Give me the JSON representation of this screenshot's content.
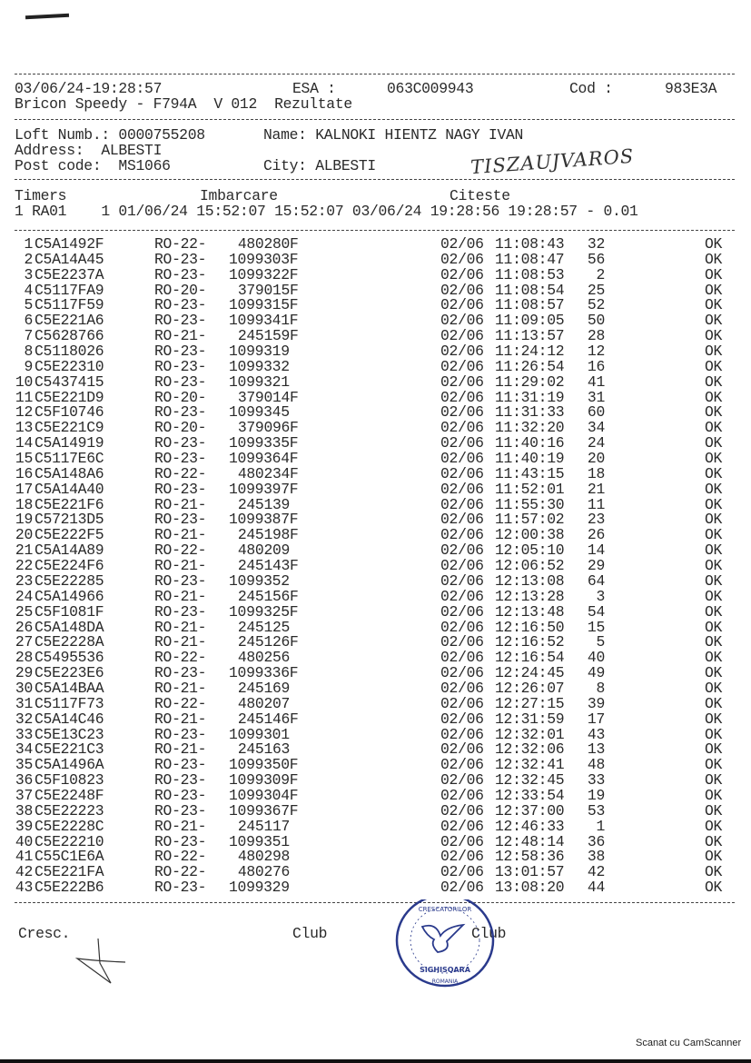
{
  "header": {
    "datetime": "03/06/24-19:28:57",
    "esa_label": "ESA :",
    "esa_value": "063C009943",
    "cod_label": "Cod :",
    "cod_value": "983E3A",
    "subtitle": "Bricon Speedy - F794A  V 012  Rezultate"
  },
  "fancier": {
    "loft": "Loft Numb.: 0000755208",
    "name": "Name: KALNOKI HIENTZ NAGY IVAN",
    "address": "Address:  ALBESTI",
    "post_code": "Post code:  MS1066",
    "city": "City: ALBESTI",
    "handwritten_note": "TISZAUJVAROS"
  },
  "timers": {
    "label": "Timers",
    "imbarcare_label": "Imbarcare",
    "citeste_label": "Citeste",
    "line": "1 RA01    1 01/06/24 15:52:07 15:52:07 03/06/24 19:28:56 19:28:57 - 0.01"
  },
  "rows": [
    {
      "n": "1",
      "chip": "C5A1492F",
      "ring_prefix": "RO-22-",
      "ring": "480280F",
      "date": "02/06",
      "time": "11:08:43",
      "rank": "32",
      "status": "OK"
    },
    {
      "n": "2",
      "chip": "C5A14A45",
      "ring_prefix": "RO-23-",
      "ring": "1099303F",
      "date": "02/06",
      "time": "11:08:47",
      "rank": "56",
      "status": "OK"
    },
    {
      "n": "3",
      "chip": "C5E2237A",
      "ring_prefix": "RO-23-",
      "ring": "1099322F",
      "date": "02/06",
      "time": "11:08:53",
      "rank": "2",
      "status": "OK"
    },
    {
      "n": "4",
      "chip": "C5117FA9",
      "ring_prefix": "RO-20-",
      "ring": "379015F",
      "date": "02/06",
      "time": "11:08:54",
      "rank": "25",
      "status": "OK"
    },
    {
      "n": "5",
      "chip": "C5117F59",
      "ring_prefix": "RO-23-",
      "ring": "1099315F",
      "date": "02/06",
      "time": "11:08:57",
      "rank": "52",
      "status": "OK"
    },
    {
      "n": "6",
      "chip": "C5E221A6",
      "ring_prefix": "RO-23-",
      "ring": "1099341F",
      "date": "02/06",
      "time": "11:09:05",
      "rank": "50",
      "status": "OK"
    },
    {
      "n": "7",
      "chip": "C5628766",
      "ring_prefix": "RO-21-",
      "ring": "245159F",
      "date": "02/06",
      "time": "11:13:57",
      "rank": "28",
      "status": "OK"
    },
    {
      "n": "8",
      "chip": "C5118026",
      "ring_prefix": "RO-23-",
      "ring": "1099319",
      "date": "02/06",
      "time": "11:24:12",
      "rank": "12",
      "status": "OK"
    },
    {
      "n": "9",
      "chip": "C5E22310",
      "ring_prefix": "RO-23-",
      "ring": "1099332",
      "date": "02/06",
      "time": "11:26:54",
      "rank": "16",
      "status": "OK"
    },
    {
      "n": "10",
      "chip": "C5437415",
      "ring_prefix": "RO-23-",
      "ring": "1099321",
      "date": "02/06",
      "time": "11:29:02",
      "rank": "41",
      "status": "OK"
    },
    {
      "n": "11",
      "chip": "C5E221D9",
      "ring_prefix": "RO-20-",
      "ring": "379014F",
      "date": "02/06",
      "time": "11:31:19",
      "rank": "31",
      "status": "OK"
    },
    {
      "n": "12",
      "chip": "C5F10746",
      "ring_prefix": "RO-23-",
      "ring": "1099345",
      "date": "02/06",
      "time": "11:31:33",
      "rank": "60",
      "status": "OK"
    },
    {
      "n": "13",
      "chip": "C5E221C9",
      "ring_prefix": "RO-20-",
      "ring": "379096F",
      "date": "02/06",
      "time": "11:32:20",
      "rank": "34",
      "status": "OK"
    },
    {
      "n": "14",
      "chip": "C5A14919",
      "ring_prefix": "RO-23-",
      "ring": "1099335F",
      "date": "02/06",
      "time": "11:40:16",
      "rank": "24",
      "status": "OK"
    },
    {
      "n": "15",
      "chip": "C5117E6C",
      "ring_prefix": "RO-23-",
      "ring": "1099364F",
      "date": "02/06",
      "time": "11:40:19",
      "rank": "20",
      "status": "OK"
    },
    {
      "n": "16",
      "chip": "C5A148A6",
      "ring_prefix": "RO-22-",
      "ring": "480234F",
      "date": "02/06",
      "time": "11:43:15",
      "rank": "18",
      "status": "OK"
    },
    {
      "n": "17",
      "chip": "C5A14A40",
      "ring_prefix": "RO-23-",
      "ring": "1099397F",
      "date": "02/06",
      "time": "11:52:01",
      "rank": "21",
      "status": "OK"
    },
    {
      "n": "18",
      "chip": "C5E221F6",
      "ring_prefix": "RO-21-",
      "ring": "245139",
      "date": "02/06",
      "time": "11:55:30",
      "rank": "11",
      "status": "OK"
    },
    {
      "n": "19",
      "chip": "C57213D5",
      "ring_prefix": "RO-23-",
      "ring": "1099387F",
      "date": "02/06",
      "time": "11:57:02",
      "rank": "23",
      "status": "OK"
    },
    {
      "n": "20",
      "chip": "C5E222F5",
      "ring_prefix": "RO-21-",
      "ring": "245198F",
      "date": "02/06",
      "time": "12:00:38",
      "rank": "26",
      "status": "OK"
    },
    {
      "n": "21",
      "chip": "C5A14A89",
      "ring_prefix": "RO-22-",
      "ring": "480209",
      "date": "02/06",
      "time": "12:05:10",
      "rank": "14",
      "status": "OK"
    },
    {
      "n": "22",
      "chip": "C5E224F6",
      "ring_prefix": "RO-21-",
      "ring": "245143F",
      "date": "02/06",
      "time": "12:06:52",
      "rank": "29",
      "status": "OK"
    },
    {
      "n": "23",
      "chip": "C5E22285",
      "ring_prefix": "RO-23-",
      "ring": "1099352",
      "date": "02/06",
      "time": "12:13:08",
      "rank": "64",
      "status": "OK"
    },
    {
      "n": "24",
      "chip": "C5A14966",
      "ring_prefix": "RO-21-",
      "ring": "245156F",
      "date": "02/06",
      "time": "12:13:28",
      "rank": "3",
      "status": "OK"
    },
    {
      "n": "25",
      "chip": "C5F1081F",
      "ring_prefix": "RO-23-",
      "ring": "1099325F",
      "date": "02/06",
      "time": "12:13:48",
      "rank": "54",
      "status": "OK"
    },
    {
      "n": "26",
      "chip": "C5A148DA",
      "ring_prefix": "RO-21-",
      "ring": "245125",
      "date": "02/06",
      "time": "12:16:50",
      "rank": "15",
      "status": "OK"
    },
    {
      "n": "27",
      "chip": "C5E2228A",
      "ring_prefix": "RO-21-",
      "ring": "245126F",
      "date": "02/06",
      "time": "12:16:52",
      "rank": "5",
      "status": "OK"
    },
    {
      "n": "28",
      "chip": "C5495536",
      "ring_prefix": "RO-22-",
      "ring": "480256",
      "date": "02/06",
      "time": "12:16:54",
      "rank": "40",
      "status": "OK"
    },
    {
      "n": "29",
      "chip": "C5E223E6",
      "ring_prefix": "RO-23-",
      "ring": "1099336F",
      "date": "02/06",
      "time": "12:24:45",
      "rank": "49",
      "status": "OK"
    },
    {
      "n": "30",
      "chip": "C5A14BAA",
      "ring_prefix": "RO-21-",
      "ring": "245169",
      "date": "02/06",
      "time": "12:26:07",
      "rank": "8",
      "status": "OK"
    },
    {
      "n": "31",
      "chip": "C5117F73",
      "ring_prefix": "RO-22-",
      "ring": "480207",
      "date": "02/06",
      "time": "12:27:15",
      "rank": "39",
      "status": "OK"
    },
    {
      "n": "32",
      "chip": "C5A14C46",
      "ring_prefix": "RO-21-",
      "ring": "245146F",
      "date": "02/06",
      "time": "12:31:59",
      "rank": "17",
      "status": "OK"
    },
    {
      "n": "33",
      "chip": "C5E13C23",
      "ring_prefix": "RO-23-",
      "ring": "1099301",
      "date": "02/06",
      "time": "12:32:01",
      "rank": "43",
      "status": "OK"
    },
    {
      "n": "34",
      "chip": "C5E221C3",
      "ring_prefix": "RO-21-",
      "ring": "245163",
      "date": "02/06",
      "time": "12:32:06",
      "rank": "13",
      "status": "OK"
    },
    {
      "n": "35",
      "chip": "C5A1496A",
      "ring_prefix": "RO-23-",
      "ring": "1099350F",
      "date": "02/06",
      "time": "12:32:41",
      "rank": "48",
      "status": "OK"
    },
    {
      "n": "36",
      "chip": "C5F10823",
      "ring_prefix": "RO-23-",
      "ring": "1099309F",
      "date": "02/06",
      "time": "12:32:45",
      "rank": "33",
      "status": "OK"
    },
    {
      "n": "37",
      "chip": "C5E2248F",
      "ring_prefix": "RO-23-",
      "ring": "1099304F",
      "date": "02/06",
      "time": "12:33:54",
      "rank": "19",
      "status": "OK"
    },
    {
      "n": "38",
      "chip": "C5E22223",
      "ring_prefix": "RO-23-",
      "ring": "1099367F",
      "date": "02/06",
      "time": "12:37:00",
      "rank": "53",
      "status": "OK"
    },
    {
      "n": "39",
      "chip": "C5E2228C",
      "ring_prefix": "RO-21-",
      "ring": "245117",
      "date": "02/06",
      "time": "12:46:33",
      "rank": "1",
      "status": "OK"
    },
    {
      "n": "40",
      "chip": "C5E22210",
      "ring_prefix": "RO-23-",
      "ring": "1099351",
      "date": "02/06",
      "time": "12:48:14",
      "rank": "36",
      "status": "OK"
    },
    {
      "n": "41",
      "chip": "C55C1E6A",
      "ring_prefix": "RO-22-",
      "ring": "480298",
      "date": "02/06",
      "time": "12:58:36",
      "rank": "38",
      "status": "OK"
    },
    {
      "n": "42",
      "chip": "C5E221FA",
      "ring_prefix": "RO-22-",
      "ring": "480276",
      "date": "02/06",
      "time": "13:01:57",
      "rank": "42",
      "status": "OK"
    },
    {
      "n": "43",
      "chip": "C5E222B6",
      "ring_prefix": "RO-23-",
      "ring": "1099329",
      "date": "02/06",
      "time": "13:08:20",
      "rank": "44",
      "status": "OK"
    }
  ],
  "footer": {
    "cresc_label": "Cresc.",
    "club_label_1": "Club",
    "club_label_2": "Club",
    "stamp_text": "ASOCIATIA CRESCATORILOR DE PORUMBEI FILIALA SIGHISOARA ROMANIA",
    "stamp_color": "#2a3a8c"
  },
  "watermark": "Scanat cu CamScanner"
}
